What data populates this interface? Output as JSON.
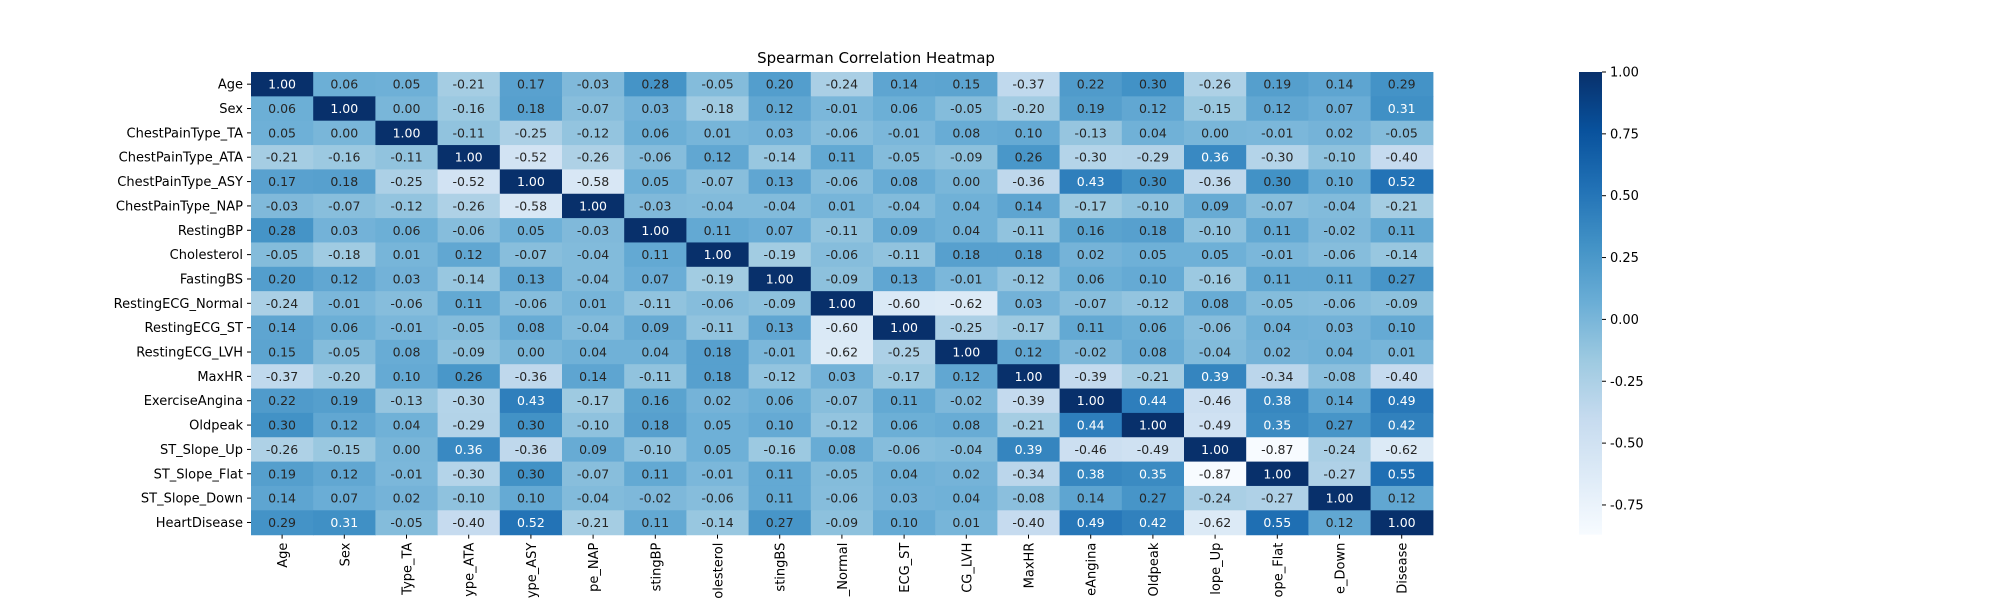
{
  "chart_data": {
    "type": "heatmap",
    "title": "Spearman Correlation Heatmap",
    "row_labels": [
      "Age",
      "Sex",
      "ChestPainType_TA",
      "ChestPainType_ATA",
      "ChestPainType_ASY",
      "ChestPainType_NAP",
      "RestingBP",
      "Cholesterol",
      "FastingBS",
      "RestingECG_Normal",
      "RestingECG_ST",
      "RestingECG_LVH",
      "MaxHR",
      "ExerciseAngina",
      "Oldpeak",
      "ST_Slope_Up",
      "ST_Slope_Flat",
      "ST_Slope_Down",
      "HeartDisease"
    ],
    "column_labels_visible": [
      "Age",
      "Sex",
      "Type_TA",
      "ype_ATA",
      "ype_ASY",
      "pe_NAP",
      "stingBP",
      "olesterol",
      "stingBS",
      "_Normal",
      "ECG_ST",
      "CG_LVH",
      "MaxHR",
      "eAngina",
      "Oldpeak",
      "lope_Up",
      "ope_Flat",
      "e_Down",
      "Disease"
    ],
    "values": [
      [
        1.0,
        0.06,
        0.05,
        -0.21,
        0.17,
        -0.03,
        0.28,
        -0.05,
        0.2,
        -0.24,
        0.14,
        0.15,
        -0.37,
        0.22,
        0.3,
        -0.26,
        0.19,
        0.14,
        0.29
      ],
      [
        0.06,
        1.0,
        -0.0,
        -0.16,
        0.18,
        -0.07,
        0.03,
        -0.18,
        0.12,
        -0.01,
        0.06,
        -0.05,
        -0.2,
        0.19,
        0.12,
        -0.15,
        0.12,
        0.07,
        0.31
      ],
      [
        0.05,
        -0.0,
        1.0,
        -0.11,
        -0.25,
        -0.12,
        0.06,
        0.01,
        0.03,
        -0.06,
        -0.01,
        0.08,
        0.1,
        -0.13,
        0.04,
        0.0,
        -0.01,
        0.02,
        -0.05
      ],
      [
        -0.21,
        -0.16,
        -0.11,
        1.0,
        -0.52,
        -0.26,
        -0.06,
        0.12,
        -0.14,
        0.11,
        -0.05,
        -0.09,
        0.26,
        -0.3,
        -0.29,
        0.36,
        -0.3,
        -0.1,
        -0.4
      ],
      [
        0.17,
        0.18,
        -0.25,
        -0.52,
        1.0,
        -0.58,
        0.05,
        -0.07,
        0.13,
        -0.06,
        0.08,
        0.0,
        -0.36,
        0.43,
        0.3,
        -0.36,
        0.3,
        0.1,
        0.52
      ],
      [
        -0.03,
        -0.07,
        -0.12,
        -0.26,
        -0.58,
        1.0,
        -0.03,
        -0.04,
        -0.04,
        0.01,
        -0.04,
        0.04,
        0.14,
        -0.17,
        -0.1,
        0.09,
        -0.07,
        -0.04,
        -0.21
      ],
      [
        0.28,
        0.03,
        0.06,
        -0.06,
        0.05,
        -0.03,
        1.0,
        0.11,
        0.07,
        -0.11,
        0.09,
        0.04,
        -0.11,
        0.16,
        0.18,
        -0.1,
        0.11,
        -0.02,
        0.11
      ],
      [
        -0.05,
        -0.18,
        0.01,
        0.12,
        -0.07,
        -0.04,
        0.11,
        1.0,
        -0.19,
        -0.06,
        -0.11,
        0.18,
        0.18,
        0.02,
        0.05,
        0.05,
        -0.01,
        -0.06,
        -0.14
      ],
      [
        0.2,
        0.12,
        0.03,
        -0.14,
        0.13,
        -0.04,
        0.07,
        -0.19,
        1.0,
        -0.09,
        0.13,
        -0.01,
        -0.12,
        0.06,
        0.1,
        -0.16,
        0.11,
        0.11,
        0.27
      ],
      [
        -0.24,
        -0.01,
        -0.06,
        0.11,
        -0.06,
        0.01,
        -0.11,
        -0.06,
        -0.09,
        1.0,
        -0.6,
        -0.62,
        0.03,
        -0.07,
        -0.12,
        0.08,
        -0.05,
        -0.06,
        -0.09
      ],
      [
        0.14,
        0.06,
        -0.01,
        -0.05,
        0.08,
        -0.04,
        0.09,
        -0.11,
        0.13,
        -0.6,
        1.0,
        -0.25,
        -0.17,
        0.11,
        0.06,
        -0.06,
        0.04,
        0.03,
        0.1
      ],
      [
        0.15,
        -0.05,
        0.08,
        -0.09,
        0.0,
        0.04,
        0.04,
        0.18,
        -0.01,
        -0.62,
        -0.25,
        1.0,
        0.12,
        -0.02,
        0.08,
        -0.04,
        0.02,
        0.04,
        0.01
      ],
      [
        -0.37,
        -0.2,
        0.1,
        0.26,
        -0.36,
        0.14,
        -0.11,
        0.18,
        -0.12,
        0.03,
        -0.17,
        0.12,
        1.0,
        -0.39,
        -0.21,
        0.39,
        -0.34,
        -0.08,
        -0.4
      ],
      [
        0.22,
        0.19,
        -0.13,
        -0.3,
        0.43,
        -0.17,
        0.16,
        0.02,
        0.06,
        -0.07,
        0.11,
        -0.02,
        -0.39,
        1.0,
        0.44,
        -0.46,
        0.38,
        0.14,
        0.49
      ],
      [
        0.3,
        0.12,
        0.04,
        -0.29,
        0.3,
        -0.1,
        0.18,
        0.05,
        0.1,
        -0.12,
        0.06,
        0.08,
        -0.21,
        0.44,
        1.0,
        -0.49,
        0.35,
        0.27,
        0.42
      ],
      [
        -0.26,
        -0.15,
        0.0,
        0.36,
        -0.36,
        0.09,
        -0.1,
        0.05,
        -0.16,
        0.08,
        -0.06,
        -0.04,
        0.39,
        -0.46,
        -0.49,
        1.0,
        -0.87,
        -0.24,
        -0.62
      ],
      [
        0.19,
        0.12,
        -0.01,
        -0.3,
        0.3,
        -0.07,
        0.11,
        -0.01,
        0.11,
        -0.05,
        0.04,
        0.02,
        -0.34,
        0.38,
        0.35,
        -0.87,
        1.0,
        -0.27,
        0.55
      ],
      [
        0.14,
        0.07,
        0.02,
        -0.1,
        0.1,
        -0.04,
        -0.02,
        -0.06,
        0.11,
        -0.06,
        0.03,
        0.04,
        -0.08,
        0.14,
        0.27,
        -0.24,
        -0.27,
        1.0,
        0.12
      ],
      [
        0.29,
        0.31,
        -0.05,
        -0.4,
        0.52,
        -0.21,
        0.11,
        -0.14,
        0.27,
        -0.09,
        0.1,
        0.01,
        -0.4,
        0.49,
        0.42,
        -0.62,
        0.55,
        0.12,
        1.0
      ]
    ],
    "value_format": "0.00",
    "colormap": "Blues",
    "colormap_stops": [
      "#f7fbff",
      "#deebf7",
      "#c6dbef",
      "#9ecae1",
      "#6baed6",
      "#4292c6",
      "#2171b5",
      "#08519c",
      "#08306b"
    ],
    "vmin": -0.87,
    "vmax": 1.0,
    "colorbar_ticks": [
      "1.00",
      "0.75",
      "0.50",
      "0.25",
      "0.00",
      "-0.25",
      "-0.50",
      "-0.75"
    ],
    "grid": false
  }
}
